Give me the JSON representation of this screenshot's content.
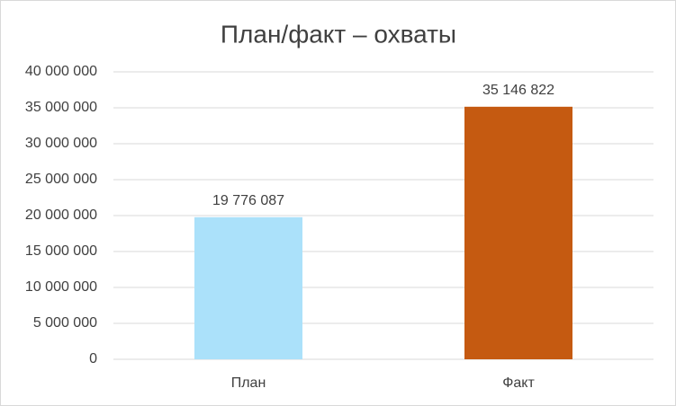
{
  "chart_data": {
    "type": "bar",
    "title": "План/факт – охваты",
    "categories": [
      "План",
      "Факт"
    ],
    "values": [
      19776087,
      35146822
    ],
    "value_labels": [
      "19 776 087",
      "35 146 822"
    ],
    "colors": [
      "#abe1fa",
      "#c55a11"
    ],
    "ylim": [
      0,
      40000000
    ],
    "yticks": [
      {
        "value": 0,
        "label": "0"
      },
      {
        "value": 5000000,
        "label": "5 000 000"
      },
      {
        "value": 10000000,
        "label": "10 000 000"
      },
      {
        "value": 15000000,
        "label": "15 000 000"
      },
      {
        "value": 20000000,
        "label": "20 000 000"
      },
      {
        "value": 25000000,
        "label": "25 000 000"
      },
      {
        "value": 30000000,
        "label": "30 000 000"
      },
      {
        "value": 35000000,
        "label": "35 000 000"
      },
      {
        "value": 40000000,
        "label": "40 000 000"
      }
    ],
    "grid": true
  }
}
